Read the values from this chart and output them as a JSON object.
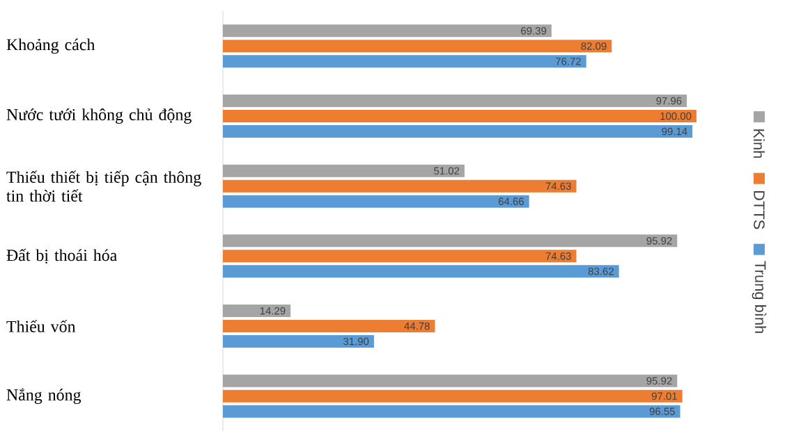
{
  "chart_data": {
    "type": "bar",
    "orientation": "horizontal",
    "categories": [
      "Khoảng cách",
      "Nước tưới không chủ động",
      "Thiếu thiết bị tiếp cận thông tin thời tiết",
      "Đất bị thoái hóa",
      "Thiếu vốn",
      "Nắng nóng"
    ],
    "series": [
      {
        "name": "Kinh",
        "color": "#a5a5a5",
        "values": [
          69.39,
          97.96,
          51.02,
          95.92,
          14.29,
          95.92
        ],
        "value_labels": [
          "69.39",
          "97.96",
          "51.02",
          "95.92",
          "14.29",
          "95.92"
        ]
      },
      {
        "name": "DTTS",
        "color": "#ed7d31",
        "values": [
          82.09,
          100.0,
          74.63,
          74.63,
          44.78,
          97.01
        ],
        "value_labels": [
          "82.09",
          "100.00",
          "74.63",
          "74.63",
          "44.78",
          "97.01"
        ]
      },
      {
        "name": "Trung bình",
        "color": "#5b9bd5",
        "values": [
          76.72,
          99.14,
          64.66,
          83.62,
          31.9,
          96.55
        ],
        "value_labels": [
          "76.72",
          "99.14",
          "64.66",
          "83.62",
          "31.90",
          "96.55"
        ]
      }
    ],
    "legend": "right",
    "tick_labels": "y"
  }
}
